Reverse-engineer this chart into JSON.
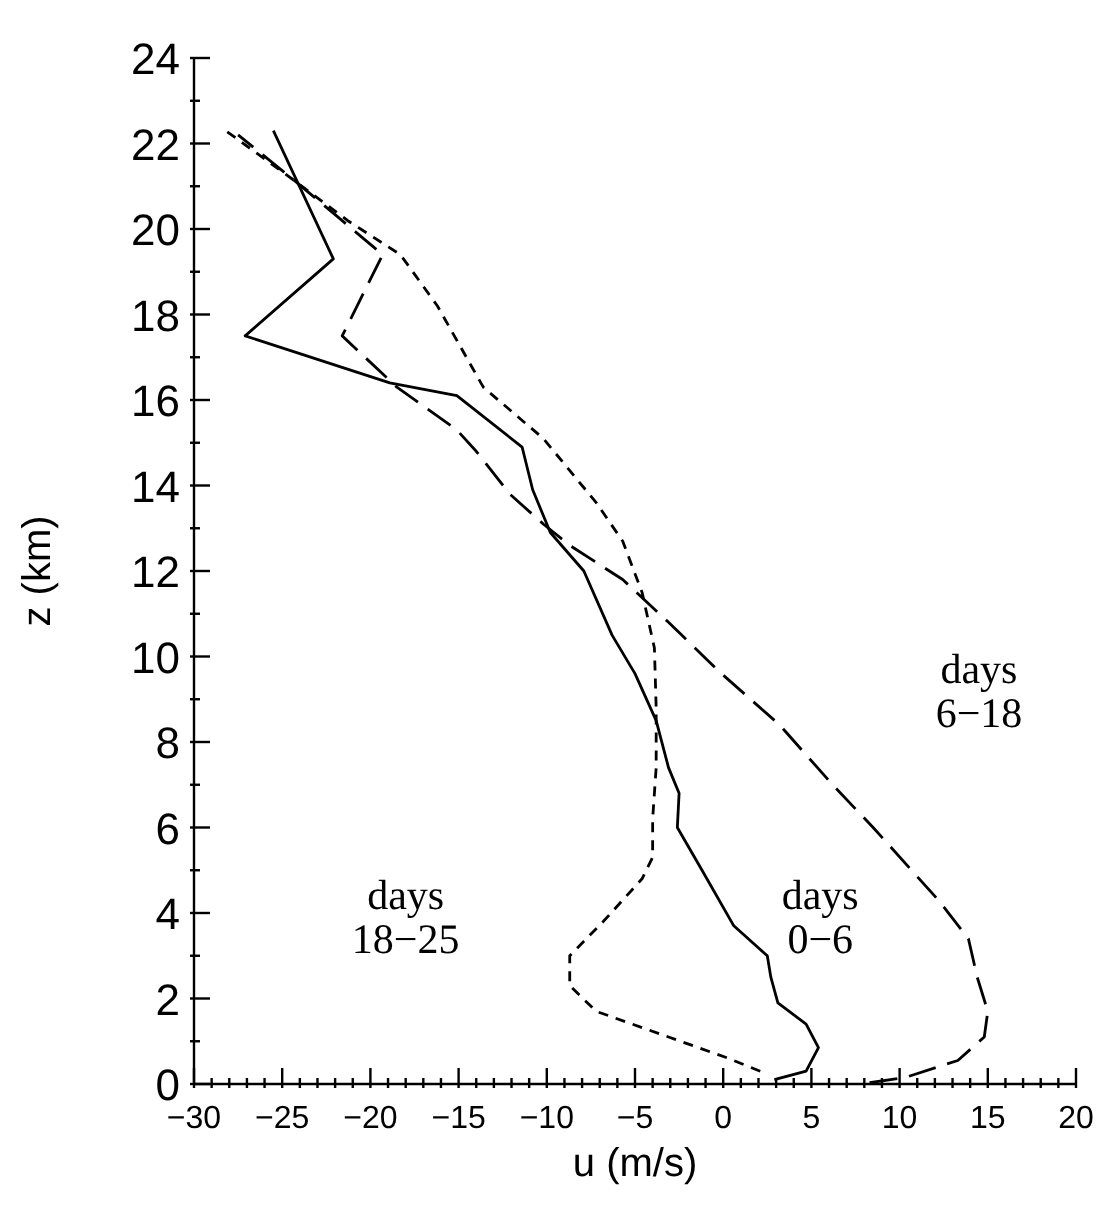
{
  "chart_data": {
    "type": "line",
    "xlabel": "u (m/s)",
    "ylabel": "z (km)",
    "xlim": [
      -30,
      20
    ],
    "ylim": [
      0,
      24
    ],
    "xticks": [
      -30,
      {
        "value": -29,
        "label": null
      },
      {
        "value": -28,
        "label": null
      },
      {
        "value": -27,
        "label": null
      },
      {
        "value": -26,
        "label": null
      },
      -25,
      {
        "value": -24,
        "label": null
      },
      {
        "value": -23,
        "label": null
      },
      {
        "value": -22,
        "label": null
      },
      {
        "value": -21,
        "label": null
      },
      -20,
      {
        "value": -19,
        "label": null
      },
      {
        "value": -18,
        "label": null
      },
      {
        "value": -17,
        "label": null
      },
      {
        "value": -16,
        "label": null
      },
      -15,
      {
        "value": -14,
        "label": null
      },
      {
        "value": -13,
        "label": null
      },
      {
        "value": -12,
        "label": null
      },
      {
        "value": -11,
        "label": null
      },
      -10,
      {
        "value": -9,
        "label": null
      },
      {
        "value": -8,
        "label": null
      },
      {
        "value": -7,
        "label": null
      },
      {
        "value": -6,
        "label": null
      },
      -5,
      {
        "value": -4,
        "label": null
      },
      {
        "value": -3,
        "label": null
      },
      {
        "value": -2,
        "label": null
      },
      {
        "value": -1,
        "label": null
      },
      0,
      {
        "value": 1,
        "label": null
      },
      {
        "value": 2,
        "label": null
      },
      {
        "value": 3,
        "label": null
      },
      {
        "value": 4,
        "label": null
      },
      5,
      {
        "value": 6,
        "label": null
      },
      {
        "value": 7,
        "label": null
      },
      {
        "value": 8,
        "label": null
      },
      {
        "value": 9,
        "label": null
      },
      10,
      {
        "value": 11,
        "label": null
      },
      {
        "value": 12,
        "label": null
      },
      {
        "value": 13,
        "label": null
      },
      {
        "value": 14,
        "label": null
      },
      15,
      {
        "value": 16,
        "label": null
      },
      {
        "value": 17,
        "label": null
      },
      {
        "value": 18,
        "label": null
      },
      {
        "value": 19,
        "label": null
      },
      20
    ],
    "yticks": [
      0,
      {
        "value": 1,
        "label": null
      },
      2,
      {
        "value": 3,
        "label": null
      },
      4,
      {
        "value": 5,
        "label": null
      },
      6,
      {
        "value": 7,
        "label": null
      },
      8,
      {
        "value": 9,
        "label": null
      },
      10,
      {
        "value": 11,
        "label": null
      },
      12,
      {
        "value": 13,
        "label": null
      },
      14,
      {
        "value": 15,
        "label": null
      },
      16,
      {
        "value": 17,
        "label": null
      },
      18,
      {
        "value": 19,
        "label": null
      },
      20,
      {
        "value": 21,
        "label": null
      },
      22,
      {
        "value": 23,
        "label": null
      },
      24
    ],
    "grid": false,
    "legend": false,
    "marker": "none",
    "series": [
      {
        "name": "days 0−6",
        "color": "#000000",
        "line_style": "solid",
        "x": [
          2.9,
          4.7,
          5.4,
          4.7,
          3.1,
          2.7,
          2.5,
          0.6,
          -1.2,
          -2.6,
          -2.5,
          -3.1,
          -3.8,
          -5,
          -6.3,
          -7.9,
          -9.8,
          -10.8,
          -11.4,
          -15.1,
          -18.9,
          -27.1,
          -22.1,
          -25.5
        ],
        "values": [
          0.1,
          0.3,
          0.85,
          1.4,
          1.9,
          2.5,
          3.0,
          3.7,
          5.0,
          6.0,
          6.8,
          7.4,
          8.5,
          9.6,
          10.5,
          12.0,
          12.9,
          13.9,
          14.9,
          16.1,
          16.4,
          17.5,
          19.3,
          22.3
        ]
      },
      {
        "name": "days 6−18",
        "color": "#000000",
        "line_style": "dashed",
        "x": [
          8.3,
          10.3,
          13.3,
          14.8,
          15,
          14.4,
          13.9,
          12.2,
          8.5,
          6.2,
          3.2,
          -0.1,
          -3.1,
          -5.7,
          -8.7,
          -10.2,
          -12.1,
          -14,
          -15.1,
          -18.5,
          -21.6,
          -19.3,
          -21.9,
          -24.5,
          -27.5
        ],
        "values": [
          0.03,
          0.15,
          0.55,
          1.1,
          1.7,
          2.5,
          3.4,
          4.3,
          6.0,
          7.0,
          8.4,
          9.6,
          10.8,
          11.8,
          12.6,
          13.1,
          13.8,
          14.8,
          15.3,
          16.3,
          17.5,
          19.4,
          20.3,
          21.2,
          22.2
        ]
      },
      {
        "name": "days 18−25",
        "color": "#000000",
        "line_style": "dotted",
        "x": [
          2.1,
          0.3,
          -3.1,
          -7.2,
          -8.7,
          -8.7,
          -6.8,
          -4.6,
          -4,
          -4,
          -3.8,
          -3.8,
          -3.9,
          -4.6,
          -5.7,
          -7.2,
          -10.2,
          -13.6,
          -16.2,
          -18.3,
          -21.3,
          -24.2,
          -28.2
        ],
        "values": [
          0.3,
          0.6,
          1.1,
          1.7,
          2.3,
          3.0,
          3.8,
          4.8,
          5.3,
          6.2,
          7.4,
          8.8,
          10.2,
          11.5,
          12.7,
          13.6,
          15.1,
          16.3,
          18.2,
          19.4,
          20.2,
          21.1,
          22.3
        ]
      }
    ]
  }
}
